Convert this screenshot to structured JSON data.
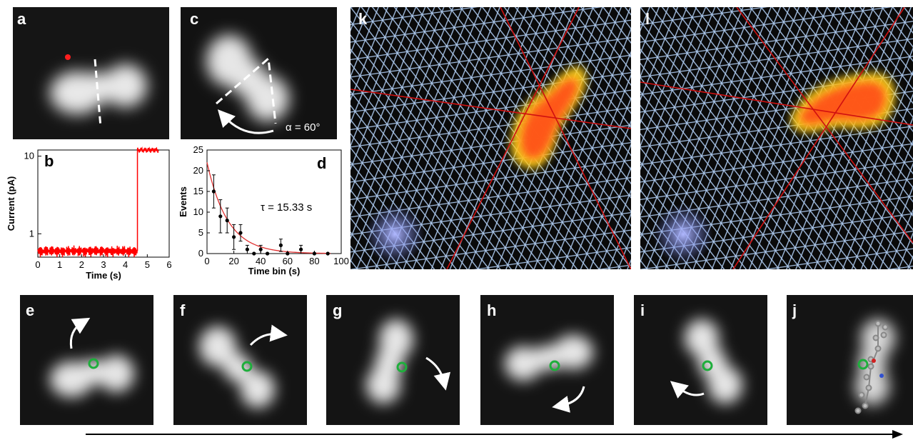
{
  "panels": {
    "a": "a",
    "b": "b",
    "c": "c",
    "d": "d",
    "e": "e",
    "f": "f",
    "g": "g",
    "h": "h",
    "i": "i",
    "j": "j",
    "k": "k",
    "l": "l"
  },
  "annotations": {
    "alpha": "α = 60°",
    "tau": "τ = 15.33 s"
  },
  "colors": {
    "trace": "#ff0000",
    "fit": "#e03030",
    "lattice": "#a8c4e8",
    "lattice_axes": "#d01010",
    "marker": "#1fae3c",
    "tip_dot": "#ff1e1e"
  },
  "chart_data": [
    {
      "type": "line",
      "panel": "b",
      "xlabel": "Time (s)",
      "ylabel": "Current (pA)",
      "xlim": [
        0,
        6
      ],
      "ylim": [
        0.5,
        12
      ],
      "yscale": "log",
      "xticks": [
        0,
        1,
        2,
        3,
        4,
        5,
        6
      ],
      "yticks": [
        1,
        10
      ],
      "series": [
        {
          "description_points": [
            [
              0,
              0.62
            ],
            [
              4.55,
              0.58
            ],
            [
              4.55,
              12
            ],
            [
              5.5,
              12
            ]
          ],
          "low_level_pA": 0.6,
          "high_level_pA": 12,
          "switch_time_s": 4.55
        }
      ]
    },
    {
      "type": "scatter",
      "panel": "d",
      "xlabel": "Time bin (s)",
      "ylabel": "Events",
      "xlim": [
        0,
        100
      ],
      "ylim": [
        0,
        25
      ],
      "xticks": [
        0,
        20,
        40,
        60,
        80,
        100
      ],
      "yticks": [
        0,
        5,
        10,
        15,
        20,
        25
      ],
      "points": [
        {
          "x": 5,
          "y": 15,
          "err": 4
        },
        {
          "x": 10,
          "y": 9,
          "err": 4
        },
        {
          "x": 15,
          "y": 8,
          "err": 3
        },
        {
          "x": 20,
          "y": 4,
          "err": 3
        },
        {
          "x": 25,
          "y": 5,
          "err": 2
        },
        {
          "x": 30,
          "y": 1,
          "err": 1
        },
        {
          "x": 35,
          "y": 0,
          "err": 0
        },
        {
          "x": 40,
          "y": 1,
          "err": 1
        },
        {
          "x": 45,
          "y": 0,
          "err": 0
        },
        {
          "x": 55,
          "y": 2,
          "err": 1.5
        },
        {
          "x": 60,
          "y": 0,
          "err": 0
        },
        {
          "x": 70,
          "y": 1,
          "err": 1
        },
        {
          "x": 80,
          "y": 0,
          "err": 0
        },
        {
          "x": 90,
          "y": 0,
          "err": 0
        }
      ],
      "fit": {
        "type": "exponential",
        "A": 22,
        "tau": 15.33
      }
    }
  ]
}
